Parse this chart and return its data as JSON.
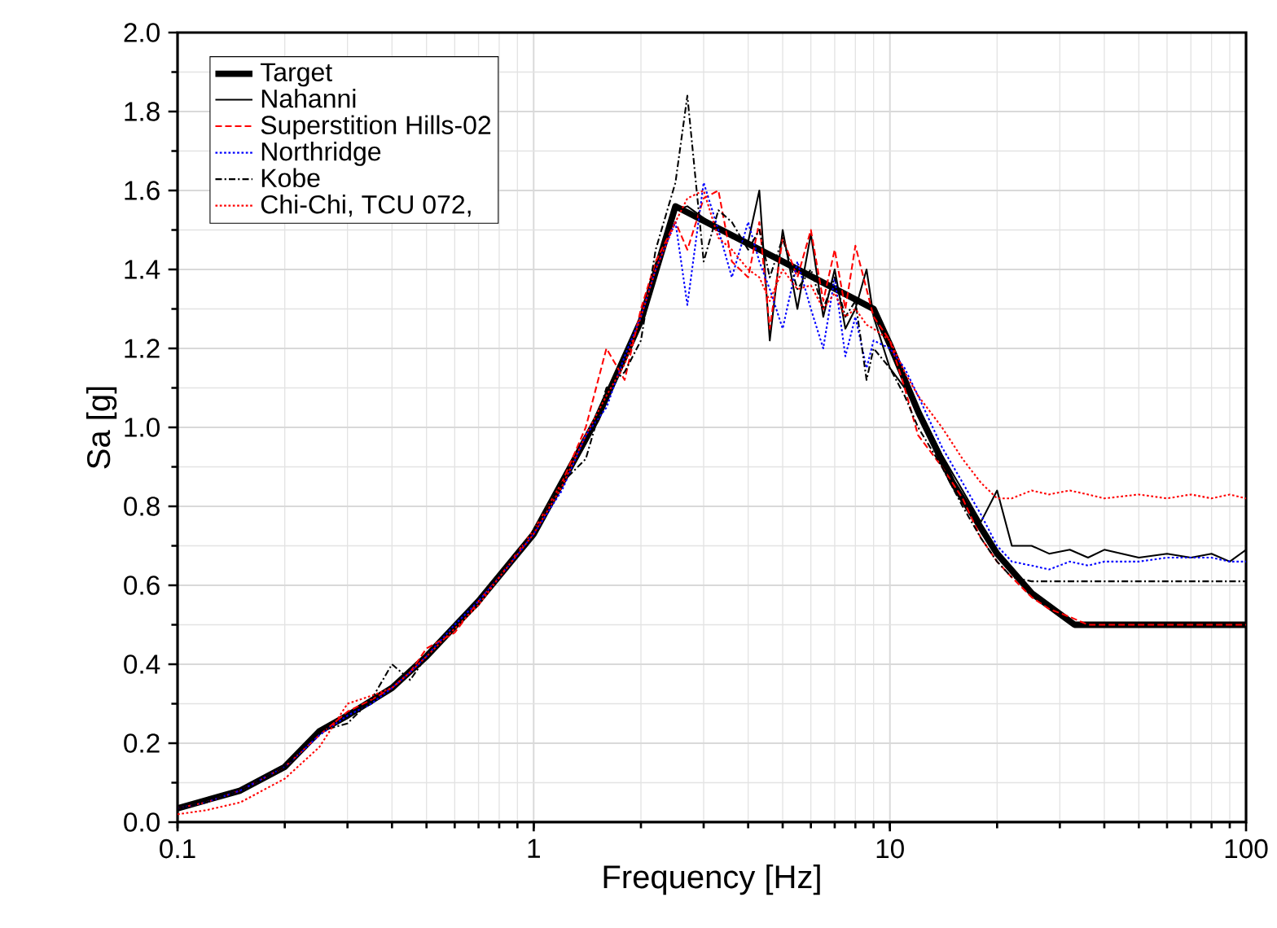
{
  "chart_data": {
    "type": "line",
    "xlabel": "Frequency [Hz]",
    "ylabel": "Sa [g]",
    "log": "x",
    "grid": true,
    "legend": "top left",
    "xlim": [
      0.1,
      100
    ],
    "xticks": [
      0.1,
      1,
      10,
      100
    ],
    "ylim": [
      0,
      2
    ],
    "yticks": [
      {
        "value": 0,
        "label": "0.0"
      },
      {
        "value": 0.2,
        "label": "0.2"
      },
      {
        "value": 0.4,
        "label": "0.4"
      },
      {
        "value": 0.6,
        "label": "0.6"
      },
      {
        "value": 0.8,
        "label": "0.8"
      },
      {
        "value": 1.0,
        "label": "1.0"
      },
      {
        "value": 1.2,
        "label": "1.2"
      },
      {
        "value": 1.4,
        "label": "1.4"
      },
      {
        "value": 1.6,
        "label": "1.6"
      },
      {
        "value": 1.8,
        "label": "1.8"
      },
      {
        "value": 2.0,
        "label": "2.0"
      }
    ],
    "x": [
      0.1,
      0.12,
      0.15,
      0.2,
      0.25,
      0.3,
      0.35,
      0.4,
      0.45,
      0.5,
      0.6,
      0.7,
      0.8,
      1,
      1.2,
      1.4,
      1.6,
      1.8,
      2,
      2.2,
      2.5,
      2.7,
      3,
      3.3,
      3.6,
      4,
      4.3,
      4.6,
      5,
      5.5,
      6,
      6.5,
      7,
      7.5,
      8,
      8.6,
      9,
      10,
      11,
      12,
      14,
      16,
      18,
      20,
      22,
      25,
      28,
      32,
      36,
      40,
      50,
      60,
      70,
      80,
      90,
      100
    ],
    "series": [
      {
        "name": "Target",
        "color": "#000000",
        "line_style": "solid",
        "x": [
          0.1,
          0.15,
          0.2,
          0.25,
          0.3,
          0.4,
          0.5,
          0.7,
          1,
          1.5,
          2,
          2.5,
          5,
          9,
          10,
          12,
          15,
          20,
          25,
          33,
          100
        ],
        "values": [
          0.035,
          0.08,
          0.14,
          0.23,
          0.27,
          0.34,
          0.42,
          0.56,
          0.73,
          1.02,
          1.27,
          1.56,
          1.42,
          1.3,
          1.21,
          1.04,
          0.86,
          0.68,
          0.58,
          0.5,
          0.5
        ]
      },
      {
        "name": "Nahanni",
        "color": "#000000",
        "line_style": "solid",
        "values": [
          0.035,
          0.05,
          0.08,
          0.14,
          0.23,
          0.27,
          0.3,
          0.34,
          0.38,
          0.42,
          0.49,
          0.56,
          0.62,
          0.73,
          0.85,
          0.96,
          1.07,
          1.17,
          1.27,
          1.38,
          1.55,
          1.56,
          1.53,
          1.5,
          1.48,
          1.47,
          1.6,
          1.22,
          1.5,
          1.3,
          1.49,
          1.28,
          1.4,
          1.25,
          1.3,
          1.4,
          1.28,
          1.15,
          1.1,
          1.05,
          0.93,
          0.84,
          0.76,
          0.84,
          0.7,
          0.7,
          0.68,
          0.69,
          0.67,
          0.69,
          0.67,
          0.68,
          0.67,
          0.68,
          0.66,
          0.69
        ]
      },
      {
        "name": "Superstition Hills-02",
        "color": "#ff0000",
        "line_style": "dashed",
        "values": [
          0.035,
          0.05,
          0.08,
          0.14,
          0.22,
          0.28,
          0.31,
          0.34,
          0.38,
          0.44,
          0.48,
          0.56,
          0.62,
          0.74,
          0.86,
          1.0,
          1.2,
          1.12,
          1.3,
          1.42,
          1.52,
          1.45,
          1.58,
          1.6,
          1.42,
          1.38,
          1.52,
          1.25,
          1.48,
          1.38,
          1.5,
          1.32,
          1.45,
          1.3,
          1.46,
          1.35,
          1.28,
          1.22,
          1.1,
          0.98,
          0.9,
          0.82,
          0.72,
          0.66,
          0.62,
          0.57,
          0.54,
          0.52,
          0.5,
          0.5,
          0.5,
          0.5,
          0.5,
          0.5,
          0.5,
          0.5
        ]
      },
      {
        "name": "Northridge",
        "color": "#0000ff",
        "line_style": "dotted",
        "values": [
          0.035,
          0.05,
          0.08,
          0.14,
          0.22,
          0.27,
          0.3,
          0.34,
          0.38,
          0.42,
          0.5,
          0.56,
          0.62,
          0.73,
          0.84,
          0.98,
          1.05,
          1.18,
          1.28,
          1.4,
          1.52,
          1.31,
          1.62,
          1.5,
          1.38,
          1.52,
          1.42,
          1.35,
          1.25,
          1.42,
          1.3,
          1.2,
          1.38,
          1.18,
          1.28,
          1.15,
          1.22,
          1.2,
          1.15,
          1.08,
          0.95,
          0.86,
          0.78,
          0.7,
          0.66,
          0.65,
          0.64,
          0.66,
          0.65,
          0.66,
          0.66,
          0.67,
          0.67,
          0.67,
          0.66,
          0.66
        ]
      },
      {
        "name": "Kobe",
        "color": "#000000",
        "line_style": "dashdot",
        "values": [
          0.035,
          0.05,
          0.08,
          0.14,
          0.23,
          0.25,
          0.31,
          0.4,
          0.36,
          0.42,
          0.49,
          0.55,
          0.62,
          0.74,
          0.86,
          0.92,
          1.1,
          1.14,
          1.22,
          1.45,
          1.62,
          1.84,
          1.42,
          1.55,
          1.52,
          1.45,
          1.5,
          1.38,
          1.48,
          1.35,
          1.4,
          1.3,
          1.38,
          1.28,
          1.32,
          1.12,
          1.2,
          1.15,
          1.08,
          1.0,
          0.9,
          0.8,
          0.72,
          0.66,
          0.62,
          0.61,
          0.61,
          0.61,
          0.61,
          0.61,
          0.61,
          0.61,
          0.61,
          0.61,
          0.61,
          0.61
        ]
      },
      {
        "name": "Chi-Chi, TCU 072,",
        "color": "#ff0000",
        "line_style": "dotted",
        "values": [
          0.02,
          0.03,
          0.05,
          0.11,
          0.19,
          0.3,
          0.32,
          0.34,
          0.38,
          0.42,
          0.49,
          0.55,
          0.62,
          0.73,
          0.85,
          0.98,
          1.08,
          1.16,
          1.28,
          1.4,
          1.52,
          1.58,
          1.6,
          1.48,
          1.45,
          1.4,
          1.38,
          1.32,
          1.4,
          1.35,
          1.36,
          1.3,
          1.34,
          1.28,
          1.3,
          1.26,
          1.25,
          1.22,
          1.14,
          1.08,
          1.0,
          0.92,
          0.86,
          0.82,
          0.82,
          0.84,
          0.83,
          0.84,
          0.83,
          0.82,
          0.83,
          0.82,
          0.83,
          0.82,
          0.83,
          0.82
        ]
      }
    ]
  }
}
